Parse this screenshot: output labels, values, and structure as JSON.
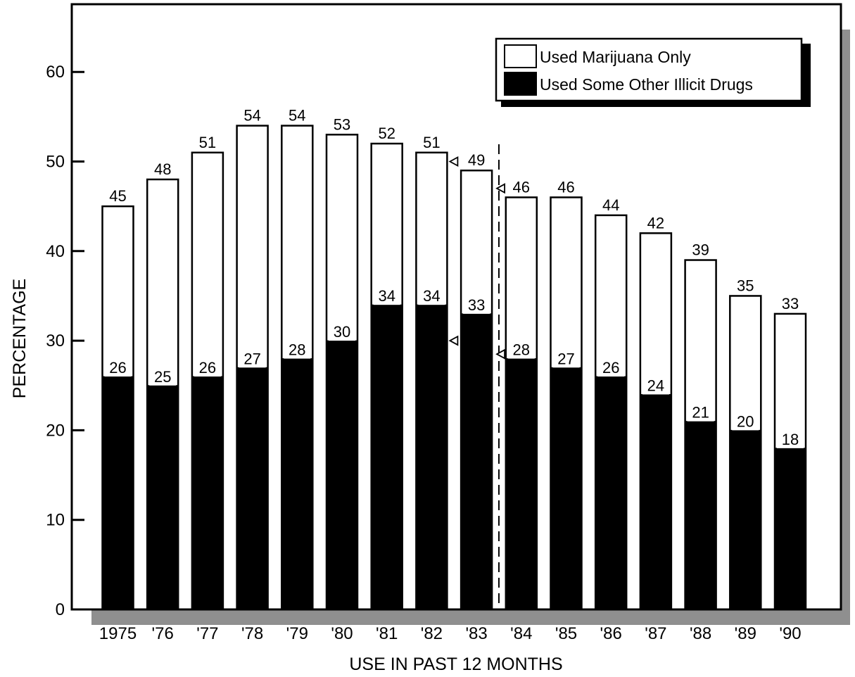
{
  "chart_data": {
    "type": "bar",
    "stacked": true,
    "ylabel": "PERCENTAGE",
    "xlabel": "USE IN PAST 12 MONTHS",
    "ylim": [
      0,
      65
    ],
    "yticks": [
      0,
      10,
      20,
      30,
      40,
      50,
      60
    ],
    "ytick_labels": [
      "0",
      "10",
      "20",
      "30",
      "40",
      "50",
      "60"
    ],
    "categories": [
      "1975",
      "'76",
      "'77",
      "'78",
      "'79",
      "'80",
      "'81",
      "'82",
      "'83",
      "'84",
      "'85",
      "'86",
      "'87",
      "'88",
      "'89",
      "'90"
    ],
    "series": [
      {
        "name": "Used Some Other Illicit Drugs",
        "color": "#000000",
        "values": [
          26,
          25,
          26,
          27,
          28,
          30,
          34,
          34,
          33,
          28,
          27,
          26,
          24,
          21,
          20,
          18
        ],
        "labels": [
          "26",
          "25",
          "26",
          "27",
          "28",
          "30",
          "34",
          "34",
          "33",
          "28",
          "27",
          "26",
          "24",
          "21",
          "20",
          "18"
        ]
      },
      {
        "name": "Used Marijuana Only",
        "color": "#ffffff",
        "totals": [
          45,
          48,
          51,
          54,
          54,
          53,
          52,
          51,
          49,
          46,
          46,
          44,
          42,
          39,
          35,
          33
        ],
        "labels": [
          "45",
          "48",
          "51",
          "54",
          "54",
          "53",
          "52",
          "51",
          "49",
          "46",
          "46",
          "44",
          "42",
          "39",
          "35",
          "33"
        ]
      }
    ],
    "legend": {
      "position": "top-right",
      "entries": [
        "Used Marijuana Only",
        "Used Some Other Illicit Drugs"
      ]
    },
    "annotations": {
      "dashed_divider_between": [
        "'83",
        "'84"
      ],
      "markers": [
        {
          "near": "'82",
          "value": 50
        },
        {
          "near": "'82",
          "value": 30
        },
        {
          "near": "'83",
          "value": 47
        },
        {
          "near": "'83",
          "value": 28.5
        }
      ]
    },
    "grid": false
  }
}
